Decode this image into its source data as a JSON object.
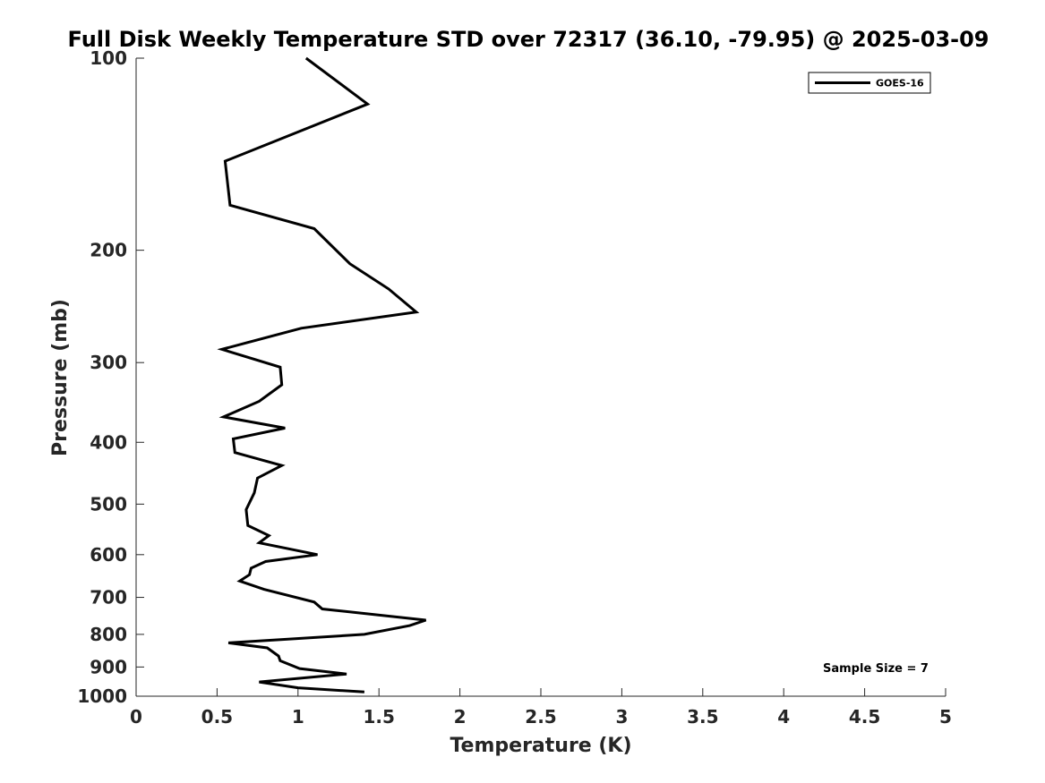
{
  "chart_data": {
    "type": "line",
    "title": "Full Disk Weekly Temperature STD over 72317 (36.10, -79.95) @ 2025-03-09",
    "xlabel": "Temperature (K)",
    "ylabel": "Pressure (mb)",
    "xlim": [
      0,
      5
    ],
    "ylim": [
      100,
      1000
    ],
    "y_scale": "log",
    "y_direction": "reversed",
    "x_ticks": [
      "0",
      "0.5",
      "1",
      "1.5",
      "2",
      "2.5",
      "3",
      "3.5",
      "4",
      "4.5",
      "5"
    ],
    "y_ticks": [
      "100",
      "200",
      "300",
      "400",
      "500",
      "600",
      "700",
      "800",
      "900",
      "1000"
    ],
    "grid": false,
    "legend_position": "top-right",
    "series": [
      {
        "name": "GOES-16",
        "color": "#000000",
        "x": [
          1.05,
          1.43,
          0.55,
          0.58,
          1.1,
          1.32,
          1.56,
          1.73,
          1.02,
          0.53,
          0.89,
          0.9,
          0.76,
          0.54,
          0.92,
          0.6,
          0.61,
          0.9,
          0.75,
          0.73,
          0.68,
          0.69,
          0.82,
          0.76,
          1.12,
          0.8,
          0.71,
          0.7,
          0.64,
          0.79,
          1.1,
          1.15,
          1.79,
          1.69,
          1.41,
          0.57,
          0.81,
          0.88,
          0.89,
          1.01,
          1.3,
          0.76,
          1.0,
          1.41
        ],
        "y": [
          100,
          118,
          145,
          170,
          185,
          210,
          230,
          250,
          265,
          286,
          305,
          325,
          345,
          365,
          380,
          395,
          415,
          435,
          455,
          480,
          510,
          540,
          560,
          575,
          600,
          615,
          630,
          645,
          660,
          680,
          712,
          730,
          760,
          775,
          800,
          825,
          840,
          865,
          880,
          905,
          923,
          950,
          970,
          985
        ]
      }
    ],
    "annotations": [
      "Sample Size = 7"
    ]
  }
}
